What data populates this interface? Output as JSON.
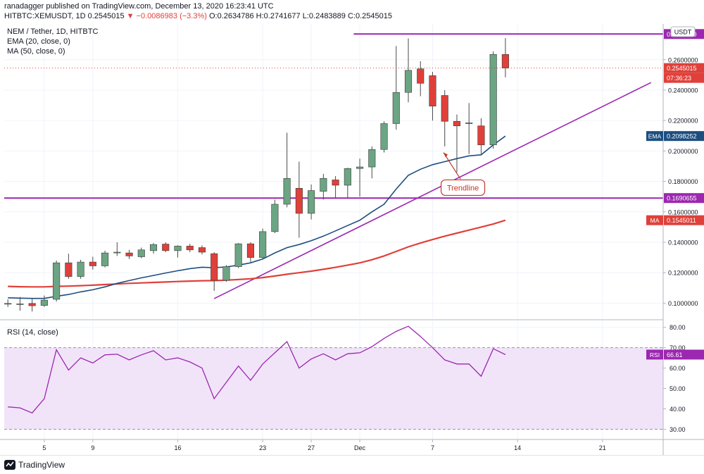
{
  "header": {
    "publisher_text": "ranadagger published on TradingView.com, December 13, 2020 16:23:41 UTC",
    "symbol_interval": "HITBTC:XEMUSDT, 1D",
    "last_price": "0.2545015",
    "change": "−0.0086983 (−3.3%)",
    "ohlc": [
      {
        "label": "O:",
        "value": "0.2634786"
      },
      {
        "label": "H:",
        "value": "0.2741677"
      },
      {
        "label": "L:",
        "value": "0.2483889"
      },
      {
        "label": "C:",
        "value": "0.2545015"
      }
    ]
  },
  "legend": {
    "title": "NEM / Tether, 1D, HITBTC",
    "ema": "EMA (20, close, 0)",
    "ma": "MA (50, close, 0)",
    "rsi": "RSI (14, close)"
  },
  "currency_badge": "USDT",
  "colors": {
    "up": "#6ba583",
    "down": "#e0403a",
    "ema": "#1c4e80",
    "ma": "#e0403a",
    "horizontal_lines": "#9c27b0",
    "trendline": "#9c27b0",
    "rsi_line": "#9c27b0",
    "rsi_band": "#f1e4f9",
    "background": "#ffffff",
    "grid": "#f0f3fa"
  },
  "chart_data": [
    {
      "type": "candlestick",
      "title": "NEM / Tether, 1D, HITBTC",
      "x_tick_labels": [
        {
          "label": "5",
          "index": 3
        },
        {
          "label": "9",
          "index": 7
        },
        {
          "label": "16",
          "index": 14
        },
        {
          "label": "23",
          "index": 21
        },
        {
          "label": "27",
          "index": 25
        },
        {
          "label": "Dec",
          "index": 29
        },
        {
          "label": "7",
          "index": 35
        },
        {
          "label": "14",
          "index": 42
        },
        {
          "label": "21",
          "index": 49
        }
      ],
      "x_range": [
        -0.3,
        54
      ],
      "ylim": [
        0.09,
        0.2835
      ],
      "y_ticks": [
        "0.1000000",
        "0.1200000",
        "0.1400000",
        "0.1600000",
        "0.1800000",
        "0.2000000",
        "0.2200000",
        "0.2400000",
        "0.2600000"
      ],
      "candles": [
        {
          "o": 0.0993,
          "h": 0.1025,
          "l": 0.0975,
          "c": 0.0998
        },
        {
          "o": 0.0995,
          "h": 0.104,
          "l": 0.095,
          "c": 0.0995
        },
        {
          "o": 0.0998,
          "h": 0.103,
          "l": 0.0945,
          "c": 0.0983
        },
        {
          "o": 0.0985,
          "h": 0.105,
          "l": 0.0975,
          "c": 0.102
        },
        {
          "o": 0.1025,
          "h": 0.128,
          "l": 0.101,
          "c": 0.1265
        },
        {
          "o": 0.1265,
          "h": 0.1325,
          "l": 0.116,
          "c": 0.1175
        },
        {
          "o": 0.1175,
          "h": 0.1285,
          "l": 0.116,
          "c": 0.127
        },
        {
          "o": 0.127,
          "h": 0.1305,
          "l": 0.122,
          "c": 0.1245
        },
        {
          "o": 0.1245,
          "h": 0.1345,
          "l": 0.1235,
          "c": 0.133
        },
        {
          "o": 0.133,
          "h": 0.14,
          "l": 0.131,
          "c": 0.1335
        },
        {
          "o": 0.133,
          "h": 0.135,
          "l": 0.129,
          "c": 0.131
        },
        {
          "o": 0.1305,
          "h": 0.1365,
          "l": 0.1295,
          "c": 0.135
        },
        {
          "o": 0.1345,
          "h": 0.1395,
          "l": 0.1325,
          "c": 0.1385
        },
        {
          "o": 0.1388,
          "h": 0.14,
          "l": 0.1335,
          "c": 0.1345
        },
        {
          "o": 0.1345,
          "h": 0.138,
          "l": 0.13,
          "c": 0.1375
        },
        {
          "o": 0.1375,
          "h": 0.139,
          "l": 0.1335,
          "c": 0.135
        },
        {
          "o": 0.1365,
          "h": 0.138,
          "l": 0.132,
          "c": 0.1335
        },
        {
          "o": 0.1325,
          "h": 0.1335,
          "l": 0.108,
          "c": 0.115
        },
        {
          "o": 0.115,
          "h": 0.125,
          "l": 0.114,
          "c": 0.124
        },
        {
          "o": 0.124,
          "h": 0.1395,
          "l": 0.123,
          "c": 0.139
        },
        {
          "o": 0.139,
          "h": 0.14,
          "l": 0.127,
          "c": 0.13
        },
        {
          "o": 0.13,
          "h": 0.149,
          "l": 0.129,
          "c": 0.147
        },
        {
          "o": 0.147,
          "h": 0.168,
          "l": 0.146,
          "c": 0.165
        },
        {
          "o": 0.165,
          "h": 0.212,
          "l": 0.163,
          "c": 0.182
        },
        {
          "o": 0.1755,
          "h": 0.193,
          "l": 0.143,
          "c": 0.159
        },
        {
          "o": 0.159,
          "h": 0.178,
          "l": 0.155,
          "c": 0.174
        },
        {
          "o": 0.1735,
          "h": 0.185,
          "l": 0.168,
          "c": 0.182
        },
        {
          "o": 0.181,
          "h": 0.1835,
          "l": 0.169,
          "c": 0.1775
        },
        {
          "o": 0.1775,
          "h": 0.189,
          "l": 0.169,
          "c": 0.1885
        },
        {
          "o": 0.1885,
          "h": 0.195,
          "l": 0.17,
          "c": 0.1895
        },
        {
          "o": 0.1895,
          "h": 0.203,
          "l": 0.182,
          "c": 0.201
        },
        {
          "o": 0.201,
          "h": 0.2195,
          "l": 0.199,
          "c": 0.218
        },
        {
          "o": 0.218,
          "h": 0.269,
          "l": 0.214,
          "c": 0.2385
        },
        {
          "o": 0.2385,
          "h": 0.274,
          "l": 0.232,
          "c": 0.253
        },
        {
          "o": 0.254,
          "h": 0.259,
          "l": 0.236,
          "c": 0.2445
        },
        {
          "o": 0.2495,
          "h": 0.252,
          "l": 0.22,
          "c": 0.2295
        },
        {
          "o": 0.2365,
          "h": 0.24,
          "l": 0.203,
          "c": 0.2195
        },
        {
          "o": 0.2195,
          "h": 0.224,
          "l": 0.186,
          "c": 0.2165
        },
        {
          "o": 0.218,
          "h": 0.2315,
          "l": 0.198,
          "c": 0.2185
        },
        {
          "o": 0.2165,
          "h": 0.2215,
          "l": 0.198,
          "c": 0.204
        },
        {
          "o": 0.204,
          "h": 0.2655,
          "l": 0.2015,
          "c": 0.2635
        },
        {
          "o": 0.2634786,
          "h": 0.2741677,
          "l": 0.2483889,
          "c": 0.2545015
        }
      ],
      "ema20": [
        0.1035,
        0.1033,
        0.1031,
        0.1031,
        0.1045,
        0.1057,
        0.1074,
        0.1088,
        0.1107,
        0.113,
        0.1148,
        0.1166,
        0.1182,
        0.1198,
        0.1213,
        0.1227,
        0.1236,
        0.1233,
        0.1238,
        0.125,
        0.1265,
        0.129,
        0.133,
        0.1365,
        0.1385,
        0.141,
        0.144,
        0.1475,
        0.151,
        0.1545,
        0.16,
        0.165,
        0.175,
        0.184,
        0.188,
        0.191,
        0.193,
        0.195,
        0.1968,
        0.1975,
        0.204,
        0.2098252
      ],
      "ma50": [
        0.111,
        0.1108,
        0.1107,
        0.1107,
        0.111,
        0.1112,
        0.1115,
        0.1118,
        0.1122,
        0.1126,
        0.113,
        0.1133,
        0.1136,
        0.1139,
        0.1142,
        0.1145,
        0.1147,
        0.1148,
        0.1151,
        0.1155,
        0.116,
        0.1168,
        0.1178,
        0.119,
        0.12,
        0.121,
        0.1222,
        0.1235,
        0.125,
        0.1265,
        0.1285,
        0.131,
        0.134,
        0.137,
        0.1395,
        0.1418,
        0.144,
        0.146,
        0.148,
        0.15,
        0.152,
        0.1545011
      ],
      "horizontal_levels": [
        {
          "value": 0.27688,
          "label": "0.2768800"
        },
        {
          "value": 0.1690655,
          "label": "0.1690655"
        }
      ],
      "trendline": {
        "start": {
          "index": 17,
          "value": 0.103
        },
        "end": {
          "index": 53,
          "value": 0.245
        }
      },
      "annotation": {
        "text": "Trendline"
      },
      "price_labels": [
        {
          "text": "0.2545015",
          "value": 0.2545015,
          "kind": "last"
        },
        {
          "text": "07:36:23",
          "value": 0.2545015,
          "kind": "countdown"
        },
        {
          "name": "EMA",
          "text": "0.2098252",
          "value": 0.2098252
        },
        {
          "name": "MA",
          "text": "0.1545011",
          "value": 0.1545011
        }
      ]
    },
    {
      "type": "line",
      "title": "RSI (14, close)",
      "ylim": [
        25,
        83
      ],
      "y_ticks": [
        "30.00",
        "40.00",
        "50.00",
        "60.00",
        "70.00",
        "80.00"
      ],
      "band": [
        30,
        70
      ],
      "values": [
        41.0,
        40.5,
        38.0,
        45.0,
        69.0,
        59.0,
        65.0,
        62.5,
        66.5,
        66.8,
        64.0,
        66.5,
        68.5,
        64.0,
        65.0,
        63.0,
        60.0,
        45.0,
        53.0,
        61.0,
        54.0,
        62.0,
        67.5,
        73.0,
        60.0,
        64.5,
        67.0,
        64.0,
        67.0,
        67.5,
        70.5,
        74.5,
        78.0,
        80.5,
        75.5,
        70.0,
        64.0,
        62.0,
        62.0,
        56.0,
        69.5,
        66.61
      ],
      "last_label": {
        "name": "RSI",
        "text": "66.61"
      }
    }
  ],
  "footer": {
    "brand": "TradingView"
  }
}
